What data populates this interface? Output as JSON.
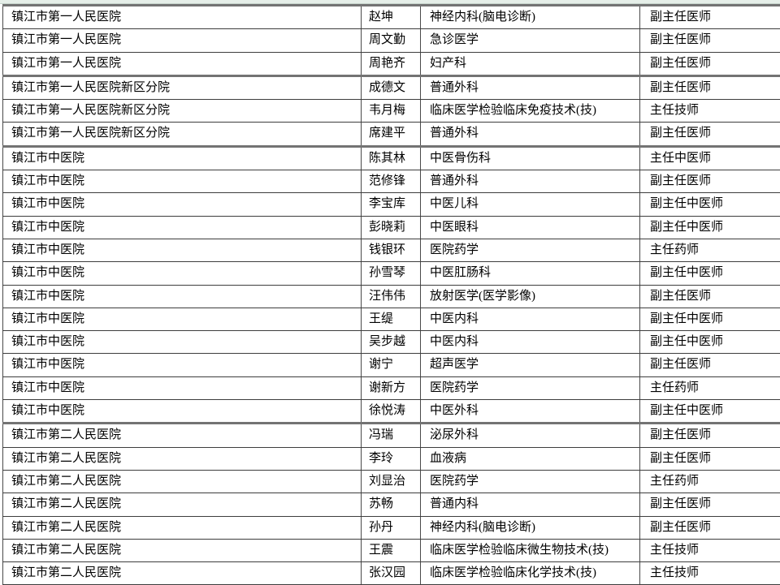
{
  "colors": {
    "top_strip": "#e6efe9",
    "border_thin": "#3d3d3d",
    "border_thick": "#737373"
  },
  "table": {
    "column_keys": [
      "hospital",
      "name",
      "department",
      "title"
    ],
    "rows": [
      {
        "hospital": "镇江市第一人民医院",
        "name": "赵坤",
        "department": "神经内科(脑电诊断)",
        "title": "副主任医师"
      },
      {
        "hospital": "镇江市第一人民医院",
        "name": "周文勤",
        "department": "急诊医学",
        "title": "副主任医师"
      },
      {
        "hospital": "镇江市第一人民医院",
        "name": "周艳齐",
        "department": "妇产科",
        "title": "副主任医师"
      },
      {
        "hospital": "镇江市第一人民医院新区分院",
        "name": "成德文",
        "department": "普通外科",
        "title": "副主任医师"
      },
      {
        "hospital": "镇江市第一人民医院新区分院",
        "name": "韦月梅",
        "department": "临床医学检验临床免疫技术(技)",
        "title": "主任技师"
      },
      {
        "hospital": "镇江市第一人民医院新区分院",
        "name": "席建平",
        "department": "普通外科",
        "title": "副主任医师"
      },
      {
        "hospital": "镇江市中医院",
        "name": "陈其林",
        "department": "中医骨伤科",
        "title": "主任中医师"
      },
      {
        "hospital": "镇江市中医院",
        "name": "范修锋",
        "department": "普通外科",
        "title": "副主任医师"
      },
      {
        "hospital": "镇江市中医院",
        "name": "李宝库",
        "department": "中医儿科",
        "title": "副主任中医师"
      },
      {
        "hospital": "镇江市中医院",
        "name": "彭晓莉",
        "department": "中医眼科",
        "title": "副主任中医师"
      },
      {
        "hospital": "镇江市中医院",
        "name": "钱银环",
        "department": "医院药学",
        "title": "主任药师"
      },
      {
        "hospital": "镇江市中医院",
        "name": "孙雪琴",
        "department": "中医肛肠科",
        "title": "副主任中医师"
      },
      {
        "hospital": "镇江市中医院",
        "name": "汪伟伟",
        "department": "放射医学(医学影像)",
        "title": "副主任医师"
      },
      {
        "hospital": "镇江市中医院",
        "name": "王缇",
        "department": "中医内科",
        "title": "副主任中医师"
      },
      {
        "hospital": "镇江市中医院",
        "name": "吴步越",
        "department": "中医内科",
        "title": "副主任中医师"
      },
      {
        "hospital": "镇江市中医院",
        "name": "谢宁",
        "department": "超声医学",
        "title": "副主任医师"
      },
      {
        "hospital": "镇江市中医院",
        "name": "谢新方",
        "department": "医院药学",
        "title": "主任药师"
      },
      {
        "hospital": "镇江市中医院",
        "name": "徐悦涛",
        "department": "中医外科",
        "title": "副主任中医师"
      },
      {
        "hospital": "镇江市第二人民医院",
        "name": "冯瑞",
        "department": "泌尿外科",
        "title": "副主任医师"
      },
      {
        "hospital": "镇江市第二人民医院",
        "name": "李玲",
        "department": "血液病",
        "title": "副主任医师"
      },
      {
        "hospital": "镇江市第二人民医院",
        "name": "刘显治",
        "department": "医院药学",
        "title": "主任药师"
      },
      {
        "hospital": "镇江市第二人民医院",
        "name": "苏畅",
        "department": "普通内科",
        "title": "副主任医师"
      },
      {
        "hospital": "镇江市第二人民医院",
        "name": "孙丹",
        "department": "神经内科(脑电诊断)",
        "title": "副主任医师"
      },
      {
        "hospital": "镇江市第二人民医院",
        "name": "王震",
        "department": "临床医学检验临床微生物技术(技)",
        "title": "主任技师"
      },
      {
        "hospital": "镇江市第二人民医院",
        "name": "张汉园",
        "department": "临床医学检验临床化学技术(技)",
        "title": "主任技师"
      }
    ]
  }
}
